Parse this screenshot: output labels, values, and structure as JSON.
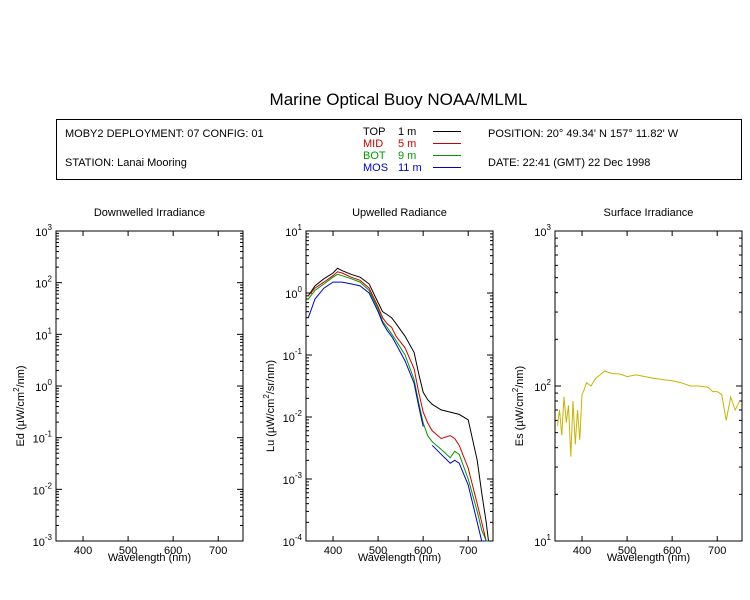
{
  "title": "Marine Optical Buoy NOAA/MLML",
  "info": {
    "deployment": "MOBY2 DEPLOYMENT: 07 CONFIG: 01",
    "station": "STATION: Lanai Mooring",
    "position": "POSITION: 20° 49.34' N   157° 11.82' W",
    "date": "DATE: 22:41 (GMT) 22 Dec 1998",
    "legend": [
      {
        "name": "TOP",
        "depth": "1  m",
        "color": "#000000"
      },
      {
        "name": "MID",
        "depth": "5  m",
        "color": "#cc0000"
      },
      {
        "name": "BOT",
        "depth": "9  m",
        "color": "#009900"
      },
      {
        "name": "MOS",
        "depth": "11  m",
        "color": "#0000cc"
      }
    ]
  },
  "chart_data": [
    {
      "type": "line",
      "title": "Downwelled Irradiance",
      "xlabel": "Wavelength (nm)",
      "ylabel_base": "Ed  (µW/cm",
      "ylabel_sup": "2",
      "ylabel_rest": "/nm)",
      "xlim": [
        340,
        755
      ],
      "ylim": [
        0.001,
        1000
      ],
      "log_y": true,
      "x_ticks": [
        400,
        500,
        600,
        700
      ],
      "y_ticks": [
        0.001,
        0.01,
        0.1,
        1,
        10,
        100,
        1000
      ],
      "y_tick_labels": [
        {
          "base": "10",
          "exp": "-3"
        },
        {
          "base": "10",
          "exp": "-2"
        },
        {
          "base": "10",
          "exp": "-1"
        },
        {
          "base": "10",
          "exp": "0"
        },
        {
          "base": "10",
          "exp": "1"
        },
        {
          "base": "10",
          "exp": "2"
        },
        {
          "base": "10",
          "exp": "3"
        }
      ],
      "series": []
    },
    {
      "type": "line",
      "title": "Upwelled Radiance",
      "xlabel": "Wavelength (nm)",
      "ylabel_base": "Lu  (µW/cm",
      "ylabel_sup": "2",
      "ylabel_rest": "/sr/nm)",
      "xlim": [
        340,
        755
      ],
      "ylim": [
        0.0001,
        10
      ],
      "log_y": true,
      "x_ticks": [
        400,
        500,
        600,
        700
      ],
      "y_ticks": [
        0.0001,
        0.001,
        0.01,
        0.1,
        1,
        10
      ],
      "y_tick_labels": [
        {
          "base": "10",
          "exp": "-4"
        },
        {
          "base": "10",
          "exp": "-3"
        },
        {
          "base": "10",
          "exp": "-2"
        },
        {
          "base": "10",
          "exp": "-1"
        },
        {
          "base": "10",
          "exp": "0"
        },
        {
          "base": "10",
          "exp": "1"
        }
      ],
      "series": [
        {
          "color": "#000000",
          "x": [
            345,
            360,
            380,
            400,
            410,
            420,
            440,
            460,
            480,
            500,
            510,
            520,
            530,
            540,
            560,
            580,
            590,
            600,
            610,
            620,
            640,
            660,
            680,
            700,
            720,
            730,
            740,
            745
          ],
          "y": [
            0.9,
            1.3,
            1.7,
            2.1,
            2.5,
            2.3,
            2.0,
            1.8,
            1.4,
            0.7,
            0.5,
            0.45,
            0.4,
            0.32,
            0.2,
            0.11,
            0.05,
            0.025,
            0.019,
            0.016,
            0.013,
            0.012,
            0.011,
            0.009,
            0.002,
            0.0006,
            0.0002,
            0.0001
          ]
        },
        {
          "color": "#cc0000",
          "x": [
            345,
            360,
            380,
            400,
            410,
            420,
            440,
            460,
            480,
            500,
            510,
            520,
            530,
            540,
            560,
            580,
            590,
            600,
            610,
            620,
            640,
            660,
            670,
            680,
            700,
            720,
            730,
            740,
            745
          ],
          "y": [
            0.9,
            1.2,
            1.5,
            1.9,
            2.2,
            2.1,
            1.8,
            1.6,
            1.2,
            0.6,
            0.4,
            0.32,
            0.28,
            0.2,
            0.13,
            0.06,
            0.025,
            0.012,
            0.008,
            0.006,
            0.0045,
            0.005,
            0.0045,
            0.0035,
            0.0015,
            0.0004,
            0.0002,
            0.0001,
            0.0001
          ]
        },
        {
          "color": "#009900",
          "x": [
            345,
            360,
            380,
            400,
            410,
            420,
            440,
            460,
            480,
            500,
            510,
            520,
            530,
            540,
            560,
            580,
            590,
            600,
            610,
            620,
            640,
            660,
            670,
            680,
            700,
            720,
            730,
            740,
            745
          ],
          "y": [
            0.8,
            1.1,
            1.4,
            1.8,
            2.0,
            1.9,
            1.7,
            1.5,
            1.1,
            0.55,
            0.35,
            0.28,
            0.22,
            0.17,
            0.1,
            0.04,
            0.017,
            0.008,
            0.005,
            0.004,
            0.003,
            0.0022,
            0.0028,
            0.0025,
            0.001,
            0.0003,
            0.00015,
            0.0001,
            0.0001
          ]
        },
        {
          "color": "#0000cc",
          "x": [
            345,
            350,
            360,
            380,
            400,
            420,
            440,
            460,
            480,
            500,
            510,
            520,
            530,
            540,
            560,
            580,
            590,
            600
          ],
          "y": [
            0.4,
            0.5,
            0.8,
            1.2,
            1.5,
            1.5,
            1.4,
            1.3,
            1.0,
            0.5,
            0.33,
            0.25,
            0.2,
            0.15,
            0.08,
            0.035,
            0.015,
            0.007
          ]
        },
        {
          "color": "#0000cc",
          "x": [
            620,
            640,
            660,
            670,
            680,
            700,
            720,
            730,
            740
          ],
          "y": [
            0.0035,
            0.0025,
            0.0018,
            0.002,
            0.0018,
            0.0008,
            0.0002,
            0.0001,
            0.0001
          ]
        }
      ]
    },
    {
      "type": "line",
      "title": "Surface Irradiance",
      "xlabel": "Wavelength (nm)",
      "ylabel_base": "Es  (µW/cm",
      "ylabel_sup": "2",
      "ylabel_rest": "/nm)",
      "xlim": [
        340,
        755
      ],
      "ylim": [
        10,
        1000
      ],
      "log_y": true,
      "x_ticks": [
        400,
        500,
        600,
        700
      ],
      "y_ticks": [
        10,
        100,
        1000
      ],
      "y_tick_labels": [
        {
          "base": "10",
          "exp": "1"
        },
        {
          "base": "10",
          "exp": "2"
        },
        {
          "base": "10",
          "exp": "3"
        }
      ],
      "series": [
        {
          "color": "#c8b400",
          "x": [
            345,
            350,
            355,
            360,
            365,
            370,
            375,
            380,
            385,
            390,
            395,
            400,
            405,
            410,
            420,
            430,
            440,
            450,
            460,
            470,
            480,
            490,
            500,
            520,
            540,
            560,
            580,
            600,
            620,
            640,
            660,
            680,
            690,
            700,
            710,
            720,
            730,
            740,
            750
          ],
          "y": [
            55,
            70,
            48,
            85,
            58,
            75,
            35,
            80,
            42,
            70,
            45,
            88,
            95,
            105,
            100,
            112,
            118,
            125,
            122,
            120,
            120,
            118,
            115,
            118,
            115,
            112,
            110,
            108,
            105,
            100,
            100,
            98,
            92,
            92,
            88,
            60,
            85,
            70,
            80
          ]
        }
      ]
    }
  ]
}
